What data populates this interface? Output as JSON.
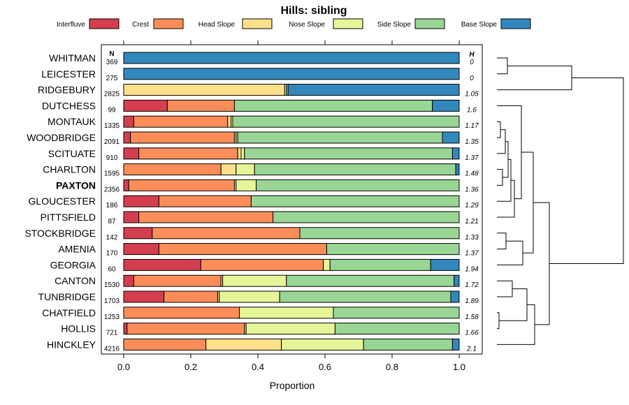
{
  "chart_data": {
    "type": "bar",
    "subtype": "stacked-horizontal-proportion",
    "title": "Hills: sibling",
    "xlabel": "Proportion",
    "ylabel": "",
    "xlim": [
      0,
      1
    ],
    "x_ticks": [
      "0.0",
      "0.2",
      "0.4",
      "0.6",
      "0.8",
      "1.0"
    ],
    "n_header": "N",
    "h_header": "H",
    "legend": [
      {
        "name": "Interfluve",
        "color": "#D53E4F"
      },
      {
        "name": "Crest",
        "color": "#FC8D59"
      },
      {
        "name": "Head Slope",
        "color": "#FEE08B"
      },
      {
        "name": "Nose Slope",
        "color": "#E6F598"
      },
      {
        "name": "Side Slope",
        "color": "#99D594"
      },
      {
        "name": "Base Slope",
        "color": "#3288BD"
      }
    ],
    "rows": [
      {
        "label": "WHITMAN",
        "n": "369",
        "h": "0",
        "bold": false,
        "values": [
          0,
          0,
          0,
          0,
          0,
          1.0
        ]
      },
      {
        "label": "LEICESTER",
        "n": "275",
        "h": "0",
        "bold": false,
        "values": [
          0,
          0,
          0,
          0,
          0,
          1.0
        ]
      },
      {
        "label": "RIDGEBURY",
        "n": "2825",
        "h": "1.05",
        "bold": false,
        "values": [
          0,
          0,
          0.48,
          0.005,
          0.005,
          0.51
        ]
      },
      {
        "label": "DUTCHESS",
        "n": "99",
        "h": "1.6",
        "bold": false,
        "values": [
          0.13,
          0.2,
          0,
          0,
          0.59,
          0.08
        ]
      },
      {
        "label": "MONTAUK",
        "n": "1335",
        "h": "1.17",
        "bold": false,
        "values": [
          0.03,
          0.28,
          0.01,
          0.005,
          0.675,
          0
        ]
      },
      {
        "label": "WOODBRIDGE",
        "n": "2091",
        "h": "1.35",
        "bold": false,
        "values": [
          0.02,
          0.31,
          0.005,
          0.005,
          0.61,
          0.05
        ]
      },
      {
        "label": "SCITUATE",
        "n": "910",
        "h": "1.37",
        "bold": false,
        "values": [
          0.045,
          0.295,
          0.01,
          0.01,
          0.62,
          0.02
        ]
      },
      {
        "label": "CHARLTON",
        "n": "1595",
        "h": "1.48",
        "bold": false,
        "values": [
          0,
          0.29,
          0.045,
          0.055,
          0.6,
          0.01
        ]
      },
      {
        "label": "PAXTON",
        "n": "2356",
        "h": "1.36",
        "bold": true,
        "values": [
          0.015,
          0.315,
          0.005,
          0.06,
          0.605,
          0
        ]
      },
      {
        "label": "GLOUCESTER",
        "n": "186",
        "h": "1.29",
        "bold": false,
        "values": [
          0.105,
          0.275,
          0,
          0,
          0.62,
          0
        ]
      },
      {
        "label": "PITTSFIELD",
        "n": "87",
        "h": "1.21",
        "bold": false,
        "values": [
          0.045,
          0.4,
          0,
          0,
          0.555,
          0
        ]
      },
      {
        "label": "STOCKBRIDGE",
        "n": "142",
        "h": "1.33",
        "bold": false,
        "values": [
          0.085,
          0.44,
          0,
          0,
          0.475,
          0
        ]
      },
      {
        "label": "AMENIA",
        "n": "170",
        "h": "1.37",
        "bold": false,
        "values": [
          0.105,
          0.5,
          0,
          0,
          0.395,
          0
        ]
      },
      {
        "label": "GEORGIA",
        "n": "60",
        "h": "1.94",
        "bold": false,
        "values": [
          0.23,
          0.365,
          0,
          0.02,
          0.3,
          0.085
        ]
      },
      {
        "label": "CANTON",
        "n": "1530",
        "h": "1.72",
        "bold": false,
        "values": [
          0.03,
          0.26,
          0.005,
          0.19,
          0.5,
          0.015
        ]
      },
      {
        "label": "TUNBRIDGE",
        "n": "1703",
        "h": "1.89",
        "bold": false,
        "values": [
          0.12,
          0.16,
          0.005,
          0.18,
          0.51,
          0.025
        ]
      },
      {
        "label": "CHATFIELD",
        "n": "1253",
        "h": "1.58",
        "bold": false,
        "values": [
          0,
          0.345,
          0,
          0.28,
          0.375,
          0
        ]
      },
      {
        "label": "HOLLIS",
        "n": "721",
        "h": "1.66",
        "bold": false,
        "values": [
          0.01,
          0.35,
          0.005,
          0.265,
          0.37,
          0
        ]
      },
      {
        "label": "HINCKLEY",
        "n": "4216",
        "h": "2.1",
        "bold": false,
        "values": [
          0,
          0.245,
          0.225,
          0.245,
          0.265,
          0.02
        ]
      }
    ]
  }
}
